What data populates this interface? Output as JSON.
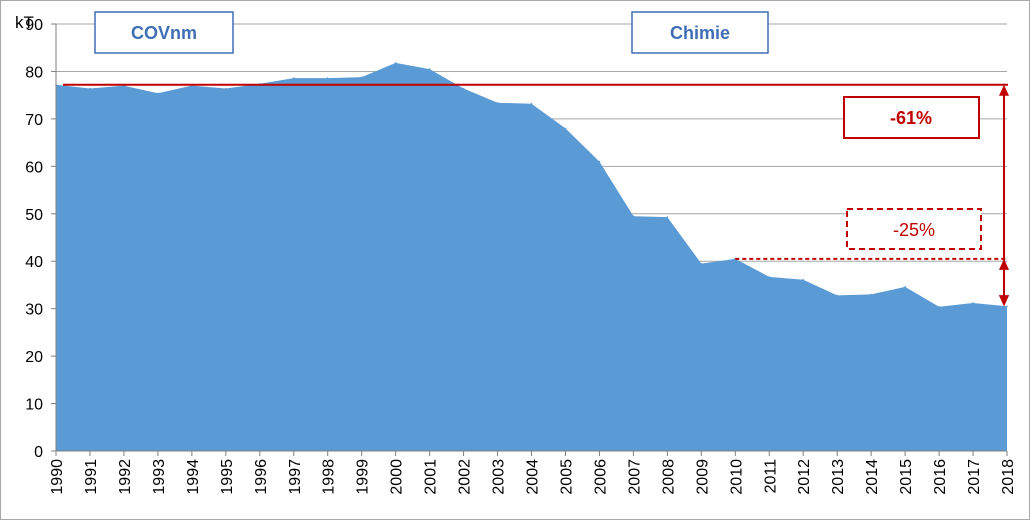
{
  "chart_data": {
    "type": "area",
    "unit_label": "kT",
    "x": [
      "1990",
      "1991",
      "1992",
      "1993",
      "1994",
      "1995",
      "1996",
      "1997",
      "1998",
      "1999",
      "2000",
      "2001",
      "2002",
      "2003",
      "2004",
      "2005",
      "2006",
      "2007",
      "2008",
      "2009",
      "2010",
      "2011",
      "2012",
      "2013",
      "2014",
      "2015",
      "2016",
      "2017",
      "2018"
    ],
    "values": [
      77.2,
      76.4,
      77.0,
      75.4,
      77.0,
      76.4,
      77.4,
      78.6,
      78.6,
      78.8,
      81.8,
      80.5,
      76.4,
      73.4,
      73.2,
      68.0,
      61.0,
      49.5,
      49.3,
      39.5,
      40.5,
      36.7,
      36.1,
      32.8,
      33.0,
      34.6,
      30.4,
      31.2,
      30.5
    ],
    "ylim": [
      0,
      90
    ],
    "yticks": [
      "0",
      "10",
      "20",
      "30",
      "40",
      "50",
      "60",
      "70",
      "80",
      "90"
    ],
    "grid": true,
    "area_color": "#5b9bd5",
    "annotation_color": "#c00000",
    "sector_labels": [
      "COVnm",
      "Chimie"
    ],
    "reference_lines": [
      {
        "from_year": "1990",
        "value": 77.2,
        "style": "solid"
      },
      {
        "from_year": "2010",
        "value": 40.5,
        "style": "dashed"
      }
    ],
    "annotations": [
      {
        "label": "-61%",
        "style": "solid",
        "from_value": 77.2,
        "to_value": 30.5
      },
      {
        "label": "-25%",
        "style": "dashed",
        "from_value": 40.5,
        "to_value": 30.5
      }
    ]
  }
}
